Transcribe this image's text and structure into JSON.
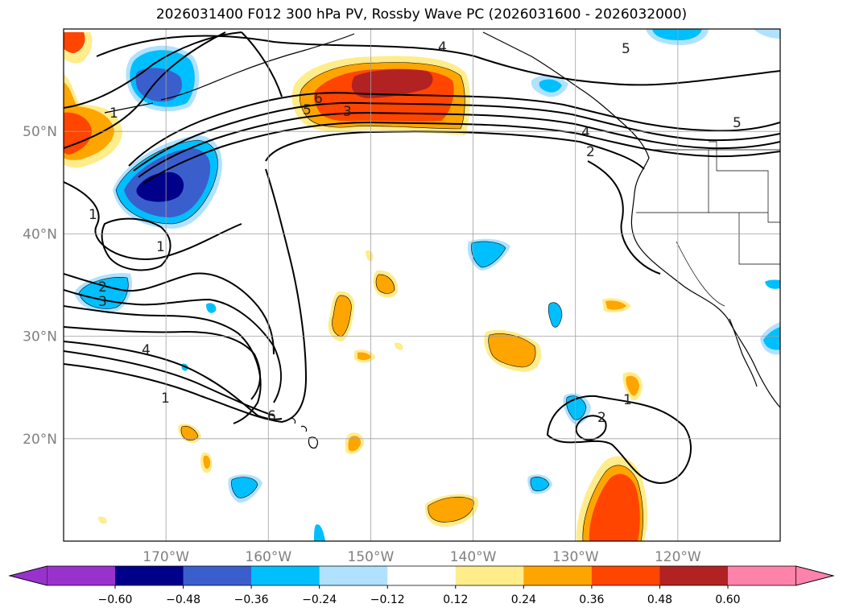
{
  "title": "2026031400 F012 300 hPa PV, Rossby Wave PC (2026031600 - 2026032000)",
  "map": {
    "lon_range": [
      -180,
      -110
    ],
    "lat_range": [
      10,
      60
    ],
    "lat_ticks": [
      {
        "value": 50,
        "label": "50°N"
      },
      {
        "value": 40,
        "label": "40°N"
      },
      {
        "value": 30,
        "label": "30°N"
      },
      {
        "value": 20,
        "label": "20°N"
      }
    ],
    "lon_ticks": [
      {
        "value": -170,
        "label": "170°W"
      },
      {
        "value": -160,
        "label": "160°W"
      },
      {
        "value": -150,
        "label": "150°W"
      },
      {
        "value": -140,
        "label": "140°W"
      },
      {
        "value": -130,
        "label": "130°W"
      },
      {
        "value": -120,
        "label": "120°W"
      }
    ],
    "contour_labels": [
      "4",
      "5",
      "1",
      "6",
      "3",
      "5",
      "4",
      "2",
      "5",
      "1",
      "1",
      "2",
      "3",
      "4",
      "1",
      "6",
      "1",
      "2"
    ]
  },
  "colorbar": {
    "labels": [
      "−0.60",
      "−0.48",
      "−0.36",
      "−0.24",
      "−0.12",
      "0.12",
      "0.24",
      "0.36",
      "0.48",
      "0.60"
    ],
    "colors": [
      "#9932cc",
      "#00008b",
      "#3a5fcd",
      "#00bfff",
      "#b0e2ff",
      "#ffffff",
      "#ffec8b",
      "#ffa500",
      "#ff4500",
      "#b22222",
      "#ff82ab"
    ]
  }
}
